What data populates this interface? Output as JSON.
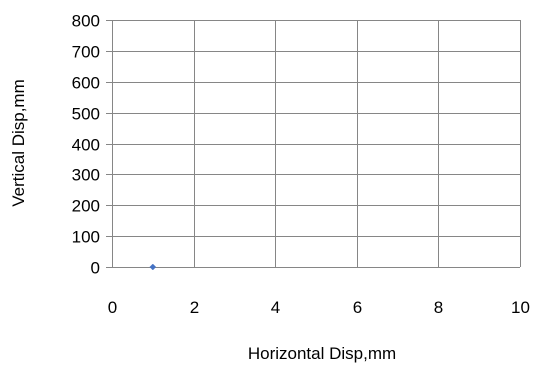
{
  "chart_data": {
    "type": "scatter",
    "title": "",
    "xlabel": "Horizontal Disp,mm",
    "ylabel": "Vertical Disp,mm",
    "xlim": [
      0,
      10
    ],
    "ylim": [
      0,
      800
    ],
    "x_ticks": [
      0,
      2,
      4,
      6,
      8,
      10
    ],
    "y_ticks": [
      0,
      100,
      200,
      300,
      400,
      500,
      600,
      700,
      800
    ],
    "x_tick_labels": [
      "0",
      "2",
      "4",
      "6",
      "8",
      "10"
    ],
    "y_tick_labels": [
      "0",
      "100",
      "200",
      "300",
      "400",
      "500",
      "600",
      "700",
      "800"
    ],
    "grid": true,
    "legend": "none",
    "series": [
      {
        "points": [
          {
            "x": 1,
            "y": 0
          }
        ],
        "color": "#4472C4",
        "marker": "diamond"
      }
    ],
    "grid_color": "#868686"
  }
}
